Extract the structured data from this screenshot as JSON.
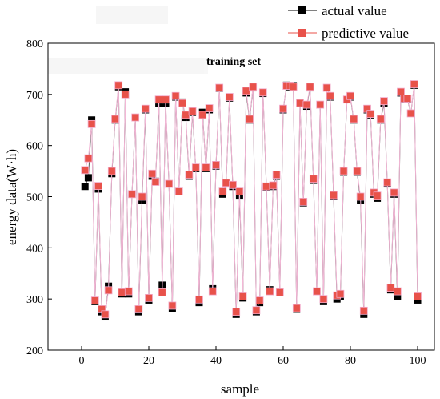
{
  "chart_data": {
    "type": "line",
    "title": "training set",
    "xlabel": "sample",
    "ylabel": "energy data(W·h)",
    "xlim": [
      -10,
      105
    ],
    "ylim": [
      200,
      800
    ],
    "xticks": [
      "0",
      "20",
      "40",
      "60",
      "80",
      "100"
    ],
    "yticks": [
      "200",
      "300",
      "400",
      "500",
      "600",
      "700",
      "800"
    ],
    "legend_position": "top-right",
    "x": [
      1,
      2,
      3,
      4,
      5,
      6,
      7,
      8,
      9,
      10,
      11,
      12,
      13,
      14,
      15,
      16,
      17,
      18,
      19,
      20,
      21,
      22,
      23,
      24,
      25,
      26,
      27,
      28,
      29,
      30,
      31,
      32,
      33,
      34,
      35,
      36,
      37,
      38,
      39,
      40,
      41,
      42,
      43,
      44,
      45,
      46,
      47,
      48,
      49,
      50,
      51,
      52,
      53,
      54,
      55,
      56,
      57,
      58,
      59,
      60,
      61,
      62,
      63,
      64,
      65,
      66,
      67,
      68,
      69,
      70,
      71,
      72,
      73,
      74,
      75,
      76,
      77,
      78,
      79,
      80,
      81,
      82,
      83,
      84,
      85,
      86,
      87,
      88,
      89,
      90,
      91,
      92,
      93,
      94,
      95,
      96,
      97,
      98,
      99,
      100
    ],
    "series": [
      {
        "name": "actual value",
        "color": "#000000",
        "marker": "square",
        "values": [
          520,
          537,
          650,
          295,
          515,
          275,
          265,
          325,
          545,
          650,
          715,
          310,
          705,
          310,
          505,
          655,
          275,
          493,
          670,
          298,
          540,
          530,
          682,
          327,
          683,
          525,
          282,
          695,
          510,
          685,
          655,
          540,
          665,
          555,
          293,
          665,
          555,
          670,
          320,
          560,
          712,
          505,
          525,
          693,
          520,
          270,
          503,
          302,
          703,
          650,
          713,
          275,
          293,
          702,
          518,
          318,
          520,
          540,
          315,
          670,
          718,
          715,
          717,
          280,
          683,
          488,
          677,
          713,
          532,
          315,
          680,
          295,
          713,
          695,
          500,
          300,
          305,
          548,
          690,
          695,
          650,
          548,
          493,
          270,
          670,
          660,
          505,
          497,
          650,
          683,
          525,
          318,
          505,
          305,
          703,
          690,
          690,
          663,
          718,
          298
        ]
      },
      {
        "name": "predictive value",
        "color": "#e8524a",
        "marker": "square",
        "values": [
          552,
          575,
          642,
          297,
          521,
          280,
          270,
          317,
          550,
          652,
          718,
          313,
          700,
          315,
          505,
          655,
          280,
          500,
          672,
          302,
          545,
          529,
          690,
          313,
          690,
          525,
          287,
          697,
          510,
          683,
          660,
          543,
          667,
          557,
          299,
          660,
          557,
          673,
          315,
          562,
          713,
          510,
          527,
          695,
          523,
          275,
          510,
          305,
          707,
          652,
          715,
          278,
          297,
          704,
          520,
          315,
          522,
          543,
          313,
          672,
          717,
          717,
          715,
          282,
          683,
          490,
          680,
          715,
          535,
          315,
          680,
          300,
          713,
          697,
          503,
          307,
          310,
          550,
          690,
          697,
          652,
          550,
          500,
          277,
          672,
          662,
          508,
          502,
          652,
          687,
          528,
          322,
          508,
          315,
          705,
          692,
          692,
          663,
          720,
          305
        ]
      }
    ]
  }
}
